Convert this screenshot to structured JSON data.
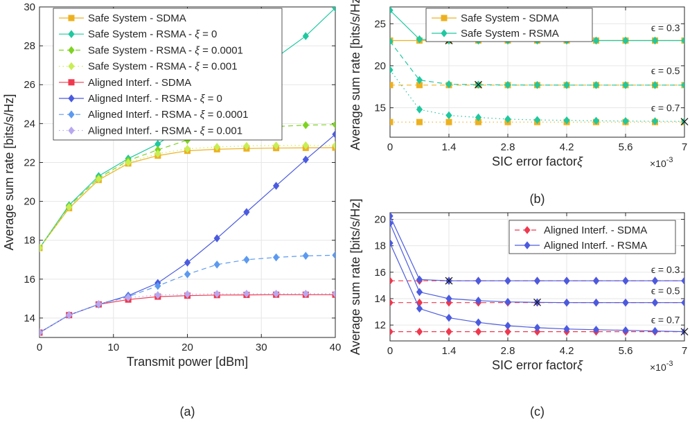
{
  "colors": {
    "safe_sdma": "#EDB120",
    "safe_rsma": "#1FC8A0",
    "safe_rsma_1e4": "#7ED321",
    "safe_rsma_1e3": "#C8EE55",
    "al_sdma": "#F0384E",
    "al_rsma": "#4B5BE0",
    "al_rsma_1e4": "#5C9AF0",
    "al_rsma_1e3": "#B8A8F0",
    "cross": "#1a1a1a"
  },
  "chart_data": [
    {
      "id": "a",
      "type": "line",
      "caption": "(a)",
      "xlabel": "Transmit power [dBm]",
      "ylabel": "Average sum rate [bits/s/Hz]",
      "xlim": [
        0,
        40
      ],
      "ylim": [
        13,
        30
      ],
      "xticks": [
        0,
        10,
        20,
        30,
        40
      ],
      "yticks": [
        14,
        16,
        18,
        20,
        22,
        24,
        26,
        28,
        30
      ],
      "xtick_labels": [
        "0",
        "10",
        "20",
        "30",
        "40"
      ],
      "ytick_labels": [
        "14",
        "16",
        "18",
        "20",
        "22",
        "24",
        "26",
        "28",
        "30"
      ],
      "x": [
        0,
        4,
        8,
        12,
        16,
        20,
        24,
        28,
        32,
        36,
        40
      ],
      "series": [
        {
          "name": "Safe System - SDMA",
          "color": "safe_sdma",
          "dash": "",
          "marker": "square",
          "values": [
            17.6,
            19.65,
            21.1,
            21.95,
            22.35,
            22.6,
            22.68,
            22.72,
            22.74,
            22.75,
            22.76
          ]
        },
        {
          "name": "Safe System - RSMA - ξ = 0",
          "color": "safe_rsma",
          "dash": "",
          "marker": "diamond",
          "values": [
            17.6,
            19.8,
            21.3,
            22.2,
            22.95,
            24.0,
            25.1,
            26.3,
            27.4,
            28.5,
            29.95
          ]
        },
        {
          "name": "Safe System - RSMA - ξ = 0.0001",
          "color": "safe_rsma_1e4",
          "dash": "7,5",
          "marker": "diamond",
          "values": [
            17.6,
            19.75,
            21.2,
            22.1,
            22.65,
            23.15,
            23.5,
            23.72,
            23.85,
            23.92,
            23.95
          ]
        },
        {
          "name": "Safe System - RSMA - ξ = 0.001",
          "color": "safe_rsma_1e3",
          "dash": "1.5,4",
          "marker": "diamond",
          "values": [
            17.6,
            19.7,
            21.15,
            22.0,
            22.45,
            22.7,
            22.8,
            22.85,
            22.87,
            22.88,
            22.88
          ]
        },
        {
          "name": "Aligned Interf. - SDMA",
          "color": "al_sdma",
          "dash": "",
          "marker": "square",
          "values": [
            13.25,
            14.15,
            14.7,
            14.95,
            15.1,
            15.15,
            15.18,
            15.19,
            15.2,
            15.2,
            15.2
          ]
        },
        {
          "name": "Aligned Interf. - RSMA - ξ = 0",
          "color": "al_rsma",
          "dash": "",
          "marker": "diamond",
          "values": [
            13.25,
            14.15,
            14.7,
            15.15,
            15.8,
            16.85,
            18.1,
            19.45,
            20.8,
            22.15,
            23.45
          ]
        },
        {
          "name": "Aligned Interf. - RSMA - ξ = 0.0001",
          "color": "al_rsma_1e4",
          "dash": "7,5",
          "marker": "diamond",
          "values": [
            13.25,
            14.15,
            14.7,
            15.1,
            15.65,
            16.25,
            16.75,
            17.0,
            17.12,
            17.2,
            17.23
          ]
        },
        {
          "name": "Aligned Interf. - RSMA - ξ = 0.001",
          "color": "al_rsma_1e3",
          "dash": "1.5,4",
          "marker": "diamond",
          "values": [
            13.25,
            14.15,
            14.72,
            15.05,
            15.18,
            15.22,
            15.24,
            15.25,
            15.25,
            15.25,
            15.25
          ]
        }
      ],
      "legend": "top-left"
    },
    {
      "id": "b",
      "type": "line",
      "caption": "(b)",
      "xlabel": "SIC error factor",
      "xlabel_symbol": "ξ",
      "xscale_base": "×10",
      "xscale_exp": "-3",
      "ylabel": "Average sum rate [bits/s/Hz]",
      "xlim": [
        0,
        7
      ],
      "ylim": [
        11.5,
        27
      ],
      "xticks": [
        0,
        1.4,
        2.8,
        4.2,
        5.6,
        7
      ],
      "yticks": [
        15,
        20,
        25
      ],
      "xtick_labels": [
        "0",
        "1.4",
        "2.8",
        "4.2",
        "5.6",
        "7"
      ],
      "ytick_labels": [
        "15",
        "20",
        "25"
      ],
      "x": [
        0,
        0.7,
        1.4,
        2.1,
        2.8,
        3.5,
        4.2,
        4.9,
        5.6,
        6.3,
        7.0
      ],
      "series": [
        {
          "name": "Safe System - SDMA",
          "legend": true,
          "color": "safe_sdma",
          "dash": "",
          "marker": "square",
          "values": [
            23.0,
            23.0,
            23.0,
            23.0,
            23.0,
            23.0,
            23.0,
            23.0,
            23.0,
            23.0,
            23.0
          ]
        },
        {
          "name": "Safe System - SDMA eps0.5",
          "legend": false,
          "color": "safe_sdma",
          "dash": "7,5",
          "marker": "square",
          "values": [
            17.7,
            17.7,
            17.7,
            17.7,
            17.7,
            17.7,
            17.7,
            17.7,
            17.7,
            17.7,
            17.7
          ]
        },
        {
          "name": "Safe System - SDMA eps0.7",
          "legend": false,
          "color": "safe_sdma",
          "dash": "1.5,4",
          "marker": "square",
          "values": [
            13.3,
            13.3,
            13.3,
            13.3,
            13.3,
            13.3,
            13.3,
            13.3,
            13.3,
            13.3,
            13.3
          ]
        },
        {
          "name": "Safe System - RSMA",
          "legend": true,
          "color": "safe_rsma",
          "dash": "",
          "marker": "diamond",
          "values": [
            26.6,
            23.15,
            23.0,
            23.0,
            23.0,
            23.0,
            23.0,
            23.0,
            23.0,
            23.0,
            23.0
          ]
        },
        {
          "name": "Safe System - RSMA eps0.5",
          "legend": false,
          "color": "safe_rsma",
          "dash": "7,5",
          "marker": "diamond",
          "values": [
            22.9,
            18.3,
            17.8,
            17.75,
            17.72,
            17.71,
            17.7,
            17.7,
            17.7,
            17.7,
            17.7
          ]
        },
        {
          "name": "Safe System - RSMA eps0.7",
          "legend": false,
          "color": "safe_rsma",
          "dash": "1.5,4",
          "marker": "diamond",
          "values": [
            19.5,
            14.8,
            14.1,
            13.85,
            13.65,
            13.55,
            13.5,
            13.45,
            13.42,
            13.4,
            13.38
          ]
        }
      ],
      "crosses": [
        [
          1.4,
          23.0
        ],
        [
          2.1,
          17.75
        ],
        [
          7.0,
          13.35
        ]
      ],
      "annotations": [
        {
          "text": "ϵ = 0.3",
          "x": 6.55,
          "y": 24.1
        },
        {
          "text": "ϵ = 0.5",
          "x": 6.55,
          "y": 19.0
        },
        {
          "text": "ϵ = 0.7",
          "x": 6.55,
          "y": 14.6
        }
      ],
      "legend": "top"
    },
    {
      "id": "c",
      "type": "line",
      "caption": "(c)",
      "xlabel": "SIC error factor",
      "xlabel_symbol": "ξ",
      "xscale_base": "×10",
      "xscale_exp": "-3",
      "ylabel": "Average sum rate [bits/s/Hz]",
      "xlim": [
        0,
        7
      ],
      "ylim": [
        10.8,
        20.5
      ],
      "xticks": [
        0,
        1.4,
        2.8,
        4.2,
        5.6,
        7
      ],
      "yticks": [
        12,
        14,
        16,
        18,
        20
      ],
      "xtick_labels": [
        "0",
        "1.4",
        "2.8",
        "4.2",
        "5.6",
        "7"
      ],
      "ytick_labels": [
        "12",
        "14",
        "16",
        "18",
        "20"
      ],
      "x": [
        0,
        0.7,
        1.4,
        2.1,
        2.8,
        3.5,
        4.2,
        4.9,
        5.6,
        6.3,
        7.0
      ],
      "series": [
        {
          "name": "Aligned Interf. - SDMA",
          "legend": true,
          "color": "al_sdma",
          "dash": "7,5",
          "marker": "diamond",
          "values": [
            15.35,
            15.35,
            15.35,
            15.35,
            15.35,
            15.35,
            15.35,
            15.35,
            15.35,
            15.35,
            15.35
          ]
        },
        {
          "name": "Aligned Interf. - SDMA eps0.5",
          "legend": false,
          "color": "al_sdma",
          "dash": "7,5",
          "marker": "diamond",
          "values": [
            13.7,
            13.7,
            13.7,
            13.7,
            13.7,
            13.7,
            13.7,
            13.7,
            13.7,
            13.7,
            13.7
          ]
        },
        {
          "name": "Aligned Interf. - SDMA eps0.7",
          "legend": false,
          "color": "al_sdma",
          "dash": "7,5",
          "marker": "diamond",
          "values": [
            11.5,
            11.5,
            11.5,
            11.5,
            11.5,
            11.5,
            11.5,
            11.5,
            11.5,
            11.5,
            11.5
          ]
        },
        {
          "name": "Aligned Interf. - RSMA",
          "legend": true,
          "color": "al_rsma",
          "dash": "",
          "marker": "diamond",
          "values": [
            20.25,
            15.45,
            15.35,
            15.35,
            15.35,
            15.35,
            15.35,
            15.35,
            15.35,
            15.35,
            15.35
          ]
        },
        {
          "name": "Aligned Interf. - RSMA eps0.5",
          "legend": false,
          "color": "al_rsma",
          "dash": "",
          "marker": "diamond",
          "values": [
            19.7,
            14.5,
            14.0,
            13.85,
            13.75,
            13.72,
            13.7,
            13.7,
            13.7,
            13.7,
            13.7
          ]
        },
        {
          "name": "Aligned Interf. - RSMA eps0.7",
          "legend": false,
          "color": "al_rsma",
          "dash": "",
          "marker": "diamond",
          "values": [
            18.2,
            13.25,
            12.55,
            12.2,
            11.95,
            11.8,
            11.7,
            11.65,
            11.6,
            11.55,
            11.5
          ]
        }
      ],
      "crosses": [
        [
          1.4,
          15.35
        ],
        [
          3.5,
          13.72
        ],
        [
          7.0,
          11.5
        ]
      ],
      "annotations": [
        {
          "text": "ϵ = 0.3",
          "x": 6.55,
          "y": 15.95
        },
        {
          "text": "ϵ = 0.5",
          "x": 6.55,
          "y": 14.35
        },
        {
          "text": "ϵ = 0.7",
          "x": 6.55,
          "y": 12.15
        }
      ],
      "legend": "top"
    }
  ]
}
